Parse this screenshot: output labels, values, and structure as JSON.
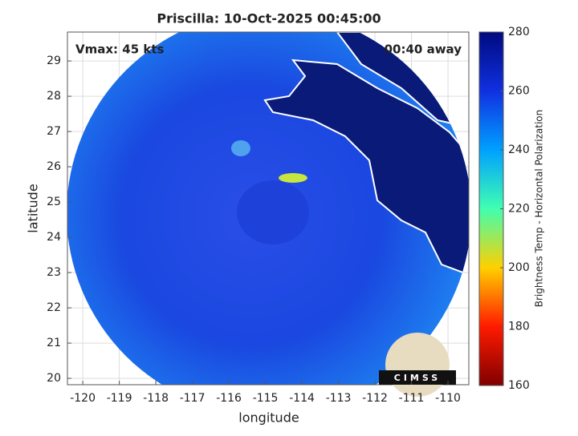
{
  "chart_data": {
    "type": "image",
    "title": "Priscilla: 10-Oct-2025 00:45:00",
    "xlabel": "longitude",
    "ylabel": "latitude",
    "xlim": [
      -120.42,
      -109.43
    ],
    "ylim": [
      19.82,
      29.82
    ],
    "xticks": [
      -120,
      -119,
      -118,
      -117,
      -116,
      -115,
      -114,
      -113,
      -112,
      -111,
      -110
    ],
    "yticks": [
      20,
      21,
      22,
      23,
      24,
      25,
      26,
      27,
      28,
      29
    ],
    "grid": true,
    "annotations": [
      "Vmax: 45 kts",
      "00:40 away"
    ],
    "logo": "CIMSS",
    "colorbar": {
      "label": "Brightness Temp - Horizontal Polarization",
      "clim": [
        160,
        280
      ],
      "ticks": [
        160,
        180,
        200,
        220,
        240,
        260,
        280
      ],
      "colormap": [
        "#7f0000",
        "#ff1a00",
        "#ffd000",
        "#40ffb0",
        "#00a0ff",
        "#1030e0",
        "#000a80"
      ]
    }
  }
}
